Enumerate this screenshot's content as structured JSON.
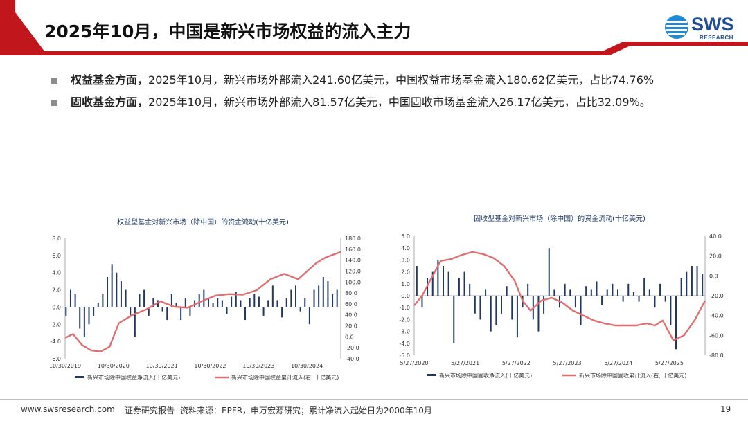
{
  "header": {
    "title": "2025年10月，中国是新兴市场权益的流入主力",
    "logo_text": "SWS",
    "logo_sub": "RESEARCH",
    "brand_red": "#c0161c",
    "brand_blue": "#1f4e9a"
  },
  "bullets": [
    {
      "bold": "权益基金方面，",
      "text": "2025年10月，新兴市场外部流入241.60亿美元，中国权益市场基金流入180.62亿美元，占比74.76%"
    },
    {
      "bold": "固收基金方面，",
      "text": "2025年10月，新兴市场外部流入81.57亿美元，中国固收市场基金流入26.17亿美元，占比32.09%。"
    }
  ],
  "chart_data": [
    {
      "type": "bar+line",
      "title": "权益型基金对新兴市场（除中国）的资金流动(十亿美元)",
      "x_ticks": [
        "10/30/2019",
        "10/30/2020",
        "10/30/2021",
        "10/30/2022",
        "10/30/2023",
        "10/30/2024"
      ],
      "x_range": [
        2019.83,
        2025.83
      ],
      "left_axis": {
        "ylim": [
          -6,
          8
        ],
        "ticks": [
          "-6.0",
          "-4.0",
          "-2.0",
          "0.0",
          "2.0",
          "4.0",
          "6.0",
          "8.0"
        ]
      },
      "right_axis": {
        "ylim": [
          -40,
          180
        ],
        "ticks": [
          "-40.0",
          "-20.0",
          "0.0",
          "20.0",
          "40.0",
          "60.0",
          "80.0",
          "100.0",
          "120.0",
          "140.0",
          "160.0",
          "180.0"
        ]
      },
      "series": [
        {
          "name": "新兴市场除中国权益净流入(十亿美元)",
          "kind": "bar",
          "axis": "left",
          "color": "#1f3864",
          "x": [
            2019.85,
            2019.95,
            2020.05,
            2020.15,
            2020.25,
            2020.35,
            2020.45,
            2020.55,
            2020.65,
            2020.75,
            2020.85,
            2020.95,
            2021.05,
            2021.15,
            2021.25,
            2021.35,
            2021.45,
            2021.55,
            2021.65,
            2021.75,
            2021.85,
            2021.95,
            2022.05,
            2022.15,
            2022.25,
            2022.35,
            2022.45,
            2022.55,
            2022.65,
            2022.75,
            2022.85,
            2022.95,
            2023.05,
            2023.15,
            2023.25,
            2023.35,
            2023.45,
            2023.55,
            2023.65,
            2023.75,
            2023.85,
            2023.95,
            2024.05,
            2024.15,
            2024.25,
            2024.35,
            2024.45,
            2024.55,
            2024.65,
            2024.75,
            2024.85,
            2024.95,
            2025.05,
            2025.15,
            2025.25,
            2025.35,
            2025.45,
            2025.55,
            2025.65,
            2025.75
          ],
          "values": [
            -1.0,
            2.0,
            1.5,
            -2.5,
            -3.5,
            -2.0,
            -1.0,
            0.5,
            1.5,
            3.5,
            5.0,
            4.0,
            3.0,
            2.0,
            -1.0,
            -3.5,
            1.5,
            2.0,
            -1.0,
            1.0,
            0.8,
            -0.5,
            -1.5,
            1.5,
            0.5,
            -1.5,
            1.0,
            -1.0,
            0.8,
            1.5,
            2.0,
            1.0,
            0.5,
            1.0,
            0.8,
            -0.8,
            1.2,
            1.8,
            0.8,
            -1.5,
            1.0,
            1.5,
            1.2,
            -1.0,
            0.8,
            2.5,
            0.8,
            -1.2,
            1.0,
            2.0,
            2.5,
            -0.5,
            1.0,
            -2.0,
            2.0,
            2.5,
            3.5,
            3.0,
            1.5,
            2.0
          ]
        },
        {
          "name": "新兴市场除中国权益累计流入(右, 十亿美元)",
          "kind": "line",
          "axis": "right",
          "color": "#e07070",
          "x": [
            2019.83,
            2020.0,
            2020.2,
            2020.4,
            2020.6,
            2020.8,
            2021.0,
            2021.3,
            2021.6,
            2021.9,
            2022.2,
            2022.5,
            2022.8,
            2023.1,
            2023.4,
            2023.7,
            2024.0,
            2024.3,
            2024.6,
            2024.9,
            2025.1,
            2025.3,
            2025.5,
            2025.83
          ],
          "values": [
            -2,
            5,
            -15,
            -25,
            -27,
            -18,
            25,
            40,
            50,
            65,
            55,
            53,
            65,
            75,
            78,
            77,
            85,
            105,
            115,
            105,
            120,
            135,
            145,
            155
          ]
        }
      ]
    },
    {
      "type": "bar+line",
      "title": "固收型基金对新兴市场（除中国）的资金流动(十亿美元)",
      "x_ticks": [
        "5/27/2020",
        "5/27/2021",
        "5/27/2022",
        "5/27/2023",
        "5/27/2024",
        "5/27/2025"
      ],
      "x_range": [
        2020.4,
        2025.9
      ],
      "left_axis": {
        "ylim": [
          -5,
          5
        ],
        "ticks": [
          "-5.0",
          "-4.0",
          "-3.0",
          "-2.0",
          "-1.0",
          "0.0",
          "1.0",
          "2.0",
          "3.0",
          "4.0",
          "5.0"
        ]
      },
      "right_axis": {
        "ylim": [
          -80,
          40
        ],
        "ticks": [
          "-80.0",
          "-60.0",
          "-40.0",
          "-20.0",
          "0.0",
          "20.0",
          "40.0"
        ]
      },
      "series": [
        {
          "name": "新兴市场除中国固收净流入(十亿美元)",
          "kind": "bar",
          "axis": "left",
          "color": "#1f3864",
          "x": [
            2020.45,
            2020.55,
            2020.65,
            2020.75,
            2020.85,
            2020.95,
            2021.05,
            2021.15,
            2021.25,
            2021.35,
            2021.45,
            2021.55,
            2021.65,
            2021.75,
            2021.85,
            2021.95,
            2022.05,
            2022.15,
            2022.25,
            2022.35,
            2022.45,
            2022.55,
            2022.65,
            2022.75,
            2022.85,
            2022.95,
            2023.05,
            2023.15,
            2023.25,
            2023.35,
            2023.45,
            2023.55,
            2023.65,
            2023.75,
            2023.85,
            2023.95,
            2024.05,
            2024.15,
            2024.25,
            2024.35,
            2024.45,
            2024.55,
            2024.65,
            2024.75,
            2024.85,
            2024.95,
            2025.05,
            2025.15,
            2025.25,
            2025.35,
            2025.45,
            2025.55,
            2025.65,
            2025.75,
            2025.85
          ],
          "values": [
            2.5,
            -1.0,
            1.5,
            2.0,
            3.0,
            2.5,
            2.0,
            -4.0,
            1.5,
            2.0,
            1.0,
            -1.5,
            -2.0,
            0.5,
            -3.0,
            -2.5,
            -1.5,
            0.8,
            -2.0,
            -3.5,
            -1.0,
            1.0,
            -2.0,
            -3.0,
            -1.5,
            4.0,
            0.5,
            -1.0,
            1.0,
            0.5,
            -1.0,
            -2.5,
            0.8,
            0.5,
            1.2,
            -0.8,
            0.5,
            1.0,
            0.5,
            -0.5,
            1.0,
            0.3,
            -0.5,
            1.5,
            0.5,
            -1.0,
            1.0,
            -0.5,
            -2.5,
            -4.5,
            1.5,
            2.0,
            2.5,
            2.5,
            1.8
          ]
        },
        {
          "name": "新兴市场除中国固收累计流入(右, 十亿美元)",
          "kind": "line",
          "axis": "right",
          "color": "#e07070",
          "x": [
            2020.4,
            2020.55,
            2020.75,
            2020.9,
            2021.1,
            2021.3,
            2021.5,
            2021.7,
            2021.9,
            2022.1,
            2022.3,
            2022.45,
            2022.6,
            2022.8,
            2023.0,
            2023.2,
            2023.4,
            2023.6,
            2023.8,
            2024.0,
            2024.2,
            2024.4,
            2024.6,
            2024.8,
            2024.95,
            2025.1,
            2025.3,
            2025.5,
            2025.7,
            2025.9
          ],
          "values": [
            -30,
            -20,
            0,
            15,
            17,
            21,
            24,
            22,
            18,
            10,
            -5,
            -25,
            -35,
            -25,
            -22,
            -27,
            -35,
            -40,
            -45,
            -48,
            -50,
            -50,
            -50,
            -48,
            -50,
            -45,
            -65,
            -60,
            -45,
            -25
          ]
        }
      ]
    }
  ],
  "footer": {
    "website": "www.swsresearch.com",
    "report_type": "证券研究报告",
    "source": "资料来源：EPFR，申万宏源研究；累计净流入起始日为2000年10月",
    "page": "19"
  }
}
